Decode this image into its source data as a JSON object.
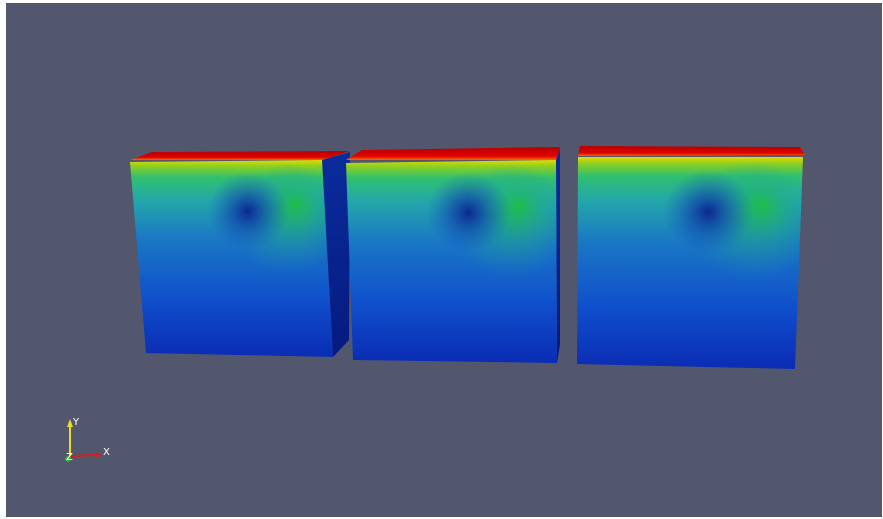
{
  "axes": {
    "y": "Y",
    "x": "X",
    "z": "Z"
  }
}
